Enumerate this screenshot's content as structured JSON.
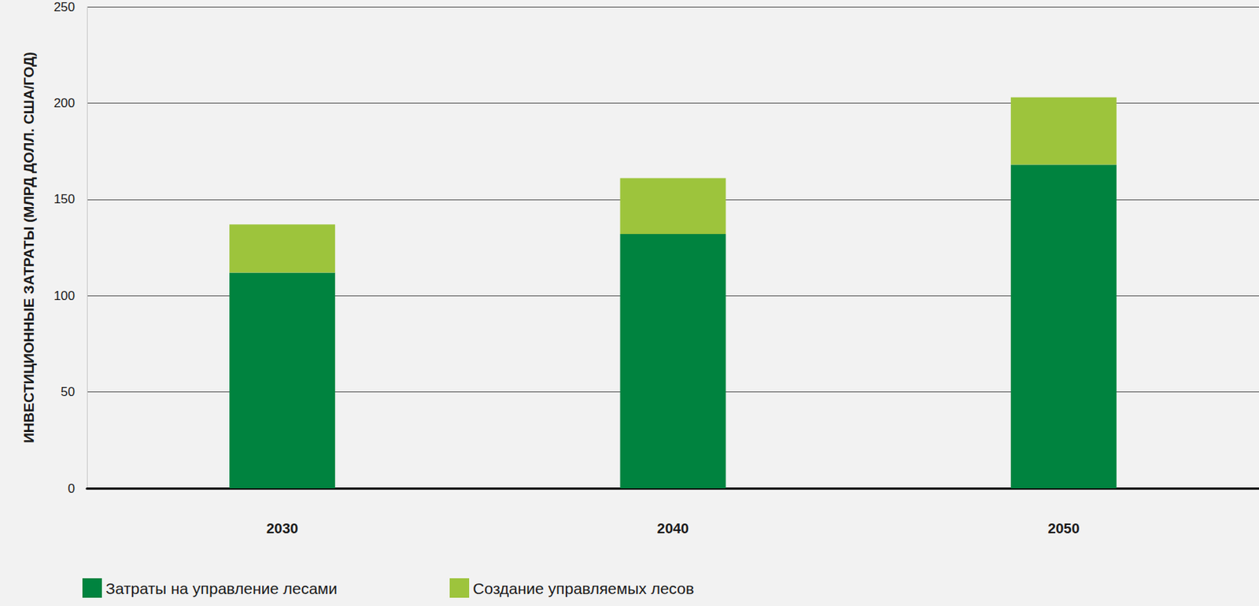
{
  "chart_data": {
    "type": "bar",
    "y_label": "ИНВЕСТИЦИОННЫЕ ЗАТРАТЫ (МЛРД ДОЛЛ. США/ГОД)",
    "categories": [
      "2030",
      "2040",
      "2050"
    ],
    "series": [
      {
        "name": "Затраты на управление лесами",
        "color": "#00833f",
        "values": [
          112,
          132,
          168
        ]
      },
      {
        "name": "Создание управляемых лесов",
        "color": "#9dc43c",
        "values": [
          25,
          29,
          35
        ]
      }
    ],
    "ylim": [
      0,
      250
    ],
    "yticks": [
      0,
      50,
      100,
      150,
      200,
      250
    ],
    "stacked": true,
    "grid": true,
    "legend": "bottom-left"
  }
}
